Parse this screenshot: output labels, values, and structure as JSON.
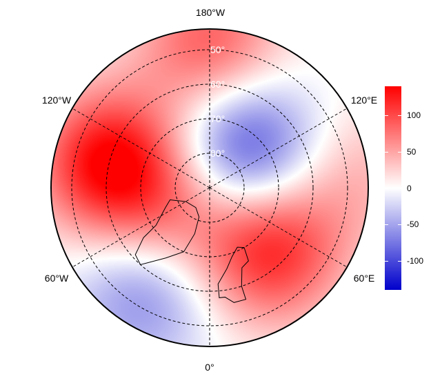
{
  "map": {
    "projection": "north-polar azimuthal",
    "longitude_labels": {
      "top": "180°W",
      "upper_left": "120°W",
      "upper_right": "120°E",
      "lower_left": "60°W",
      "lower_right": "60°E",
      "bottom": "0°"
    },
    "latitude_labels": [
      "50°",
      "60°",
      "70°",
      "80°"
    ],
    "anomaly_centers": [
      {
        "lon": -104,
        "lat": 60,
        "value": 140
      },
      {
        "lon": 136,
        "lat": 75,
        "value": -110
      },
      {
        "lon": 44,
        "lat": 65,
        "value": 120
      },
      {
        "lon": -32,
        "lat": 55,
        "value": -70
      },
      {
        "lon": 180,
        "lat": 48,
        "value": 90
      },
      {
        "lon": -55,
        "lat": 77,
        "value": 60
      },
      {
        "lon": 95,
        "lat": 48,
        "value": 40
      }
    ]
  },
  "colorbar": {
    "range": [
      -140,
      140
    ],
    "ticks": [
      {
        "value": 100,
        "label": "100"
      },
      {
        "value": 50,
        "label": "50"
      },
      {
        "value": 0,
        "label": "0"
      },
      {
        "value": -50,
        "label": "-50"
      },
      {
        "value": -100,
        "label": "-100"
      }
    ],
    "colors": {
      "min": "#0000cc",
      "mid": "#ffffff",
      "max": "#ff0000"
    }
  }
}
